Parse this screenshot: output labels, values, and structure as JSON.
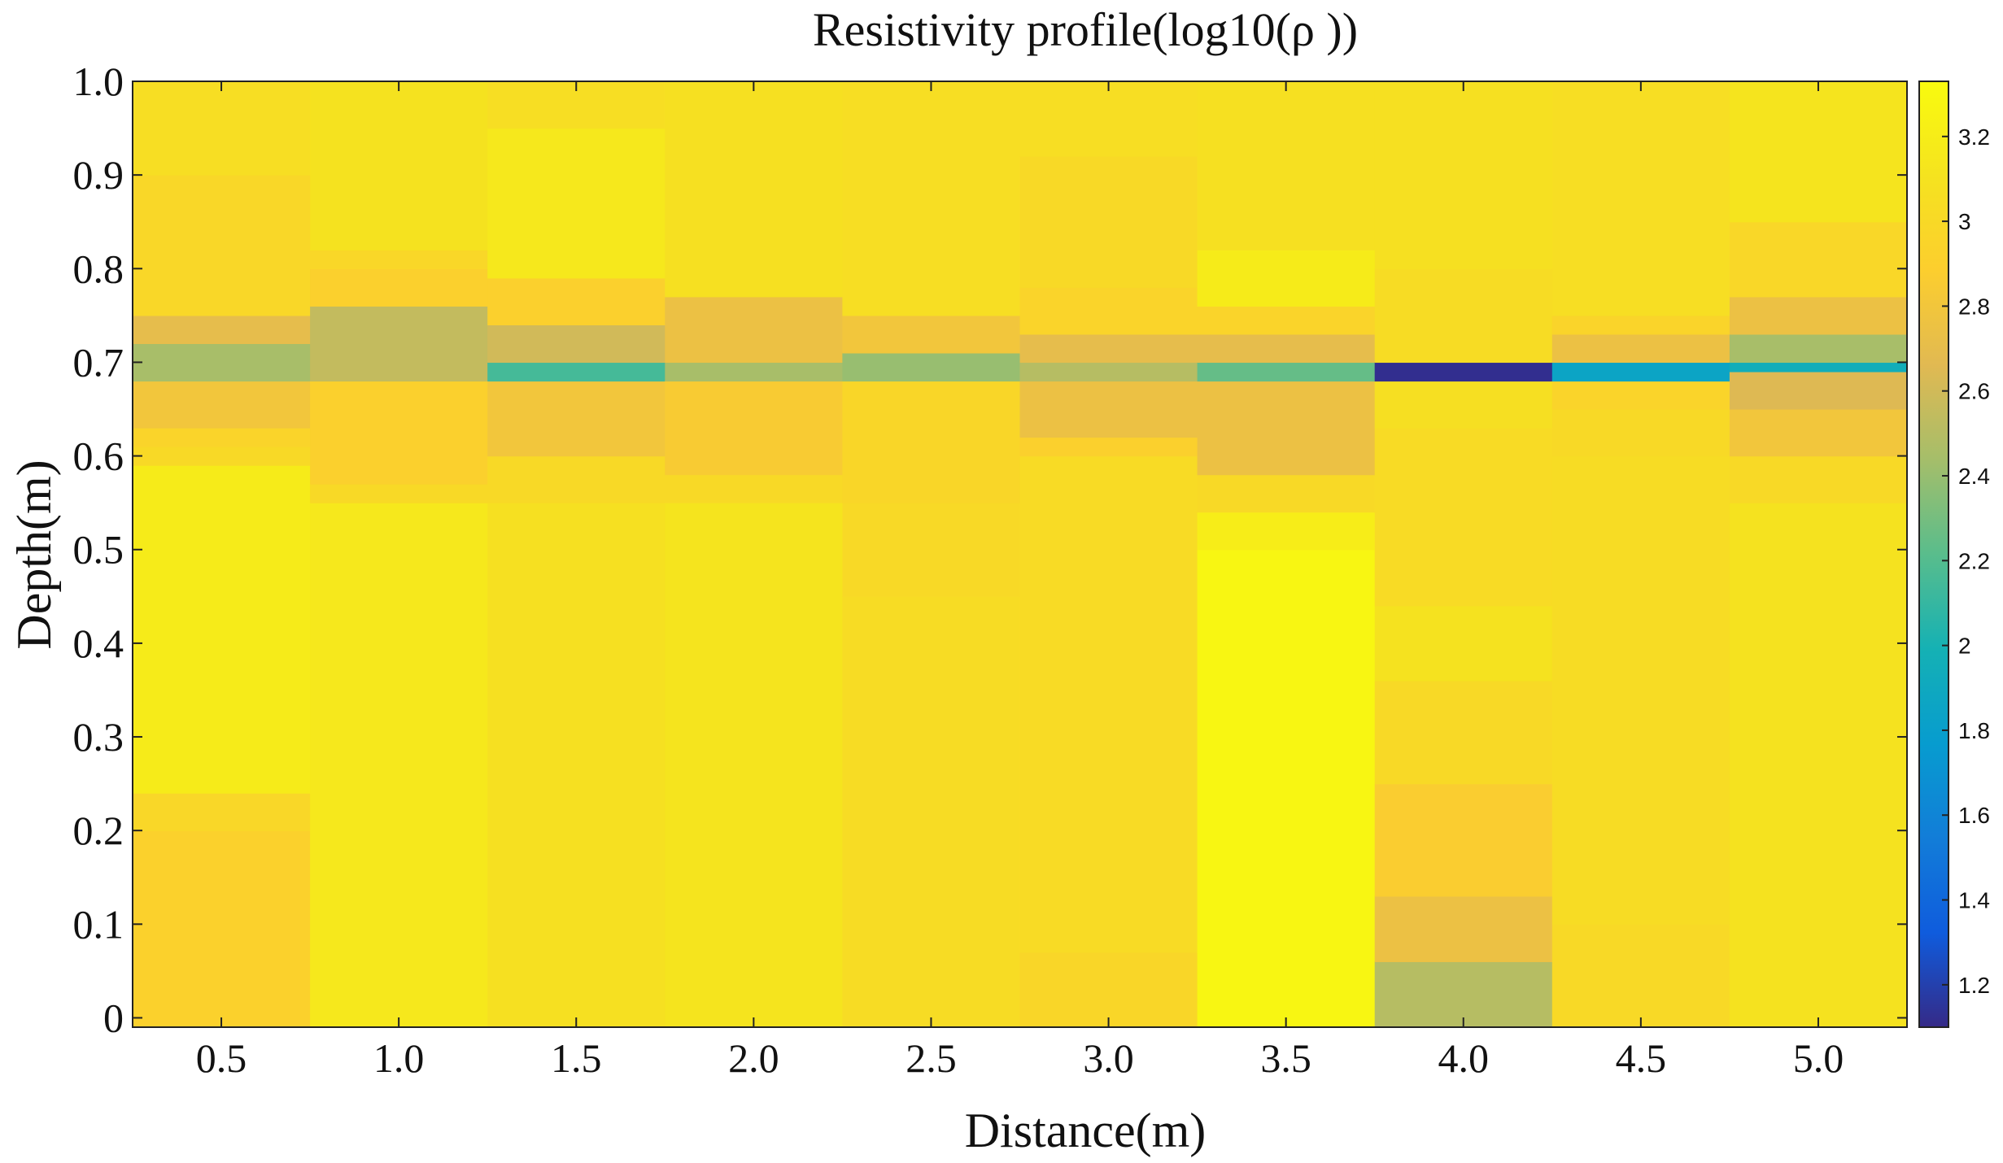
{
  "chart_data": {
    "type": "heatmap",
    "title": "Resistivity profile(log10(ρ ))",
    "xlabel": "Distance(m)",
    "ylabel": "Depth(m)",
    "x_ticks": [
      "0.5",
      "1.0",
      "1.5",
      "2.0",
      "2.5",
      "3.0",
      "3.5",
      "4.0",
      "4.5",
      "5.0"
    ],
    "y_ticks": [
      "0",
      "0.1",
      "0.2",
      "0.3",
      "0.4",
      "0.5",
      "0.6",
      "0.7",
      "0.8",
      "0.9",
      "1.0"
    ],
    "x_centers": [
      0.5,
      1.0,
      1.5,
      2.0,
      2.5,
      3.0,
      3.5,
      4.0,
      4.5,
      5.0
    ],
    "xlim": [
      0.25,
      5.25
    ],
    "ylim": [
      -0.01,
      1.0
    ],
    "colorbar": {
      "min": 1.1,
      "max": 3.33,
      "ticks": [
        "1.2",
        "1.4",
        "1.6",
        "1.8",
        "2",
        "2.2",
        "2.4",
        "2.6",
        "2.8",
        "3",
        "3.2"
      ],
      "colormap": "parula"
    },
    "columns": [
      {
        "x": 0.5,
        "layers": [
          [
            -0.01,
            0.2,
            2.92
          ],
          [
            0.2,
            0.24,
            2.98
          ],
          [
            0.24,
            0.59,
            3.18
          ],
          [
            0.59,
            0.61,
            3.0
          ],
          [
            0.61,
            0.63,
            2.95
          ],
          [
            0.63,
            0.68,
            2.8
          ],
          [
            0.68,
            0.72,
            2.45
          ],
          [
            0.72,
            0.75,
            2.7
          ],
          [
            0.75,
            0.9,
            2.98
          ],
          [
            0.9,
            1.0,
            3.05
          ]
        ]
      },
      {
        "x": 1.0,
        "layers": [
          [
            -0.01,
            0.55,
            3.15
          ],
          [
            0.55,
            0.57,
            3.0
          ],
          [
            0.57,
            0.68,
            2.9
          ],
          [
            0.68,
            0.76,
            2.55
          ],
          [
            0.76,
            0.8,
            2.9
          ],
          [
            0.8,
            0.82,
            2.98
          ],
          [
            0.82,
            1.0,
            3.1
          ]
        ]
      },
      {
        "x": 1.5,
        "layers": [
          [
            -0.01,
            0.55,
            3.08
          ],
          [
            0.55,
            0.6,
            3.0
          ],
          [
            0.6,
            0.68,
            2.8
          ],
          [
            0.68,
            0.7,
            2.15
          ],
          [
            0.7,
            0.74,
            2.6
          ],
          [
            0.74,
            0.79,
            2.9
          ],
          [
            0.79,
            0.95,
            3.15
          ],
          [
            0.95,
            1.0,
            3.05
          ]
        ]
      },
      {
        "x": 2.0,
        "layers": [
          [
            -0.01,
            0.55,
            3.12
          ],
          [
            0.55,
            0.58,
            3.0
          ],
          [
            0.58,
            0.68,
            2.85
          ],
          [
            0.68,
            0.7,
            2.45
          ],
          [
            0.7,
            0.77,
            2.75
          ],
          [
            0.77,
            1.0,
            3.08
          ]
        ]
      },
      {
        "x": 2.5,
        "layers": [
          [
            -0.01,
            0.45,
            3.03
          ],
          [
            0.45,
            0.55,
            3.0
          ],
          [
            0.55,
            0.68,
            2.97
          ],
          [
            0.68,
            0.71,
            2.4
          ],
          [
            0.71,
            0.75,
            2.8
          ],
          [
            0.75,
            1.0,
            3.05
          ]
        ]
      },
      {
        "x": 3.0,
        "layers": [
          [
            -0.01,
            0.07,
            2.97
          ],
          [
            0.07,
            0.6,
            3.02
          ],
          [
            0.6,
            0.62,
            2.9
          ],
          [
            0.62,
            0.68,
            2.75
          ],
          [
            0.68,
            0.7,
            2.5
          ],
          [
            0.7,
            0.73,
            2.7
          ],
          [
            0.73,
            0.78,
            2.95
          ],
          [
            0.78,
            0.92,
            3.0
          ],
          [
            0.92,
            1.0,
            3.05
          ]
        ]
      },
      {
        "x": 3.5,
        "layers": [
          [
            -0.01,
            0.5,
            3.28
          ],
          [
            0.5,
            0.54,
            3.2
          ],
          [
            0.54,
            0.58,
            3.0
          ],
          [
            0.58,
            0.68,
            2.75
          ],
          [
            0.68,
            0.7,
            2.25
          ],
          [
            0.7,
            0.73,
            2.7
          ],
          [
            0.73,
            0.76,
            2.95
          ],
          [
            0.76,
            0.82,
            3.18
          ],
          [
            0.82,
            1.0,
            3.08
          ]
        ]
      },
      {
        "x": 4.0,
        "layers": [
          [
            -0.01,
            0.06,
            2.5
          ],
          [
            0.06,
            0.13,
            2.75
          ],
          [
            0.13,
            0.25,
            2.87
          ],
          [
            0.25,
            0.36,
            3.0
          ],
          [
            0.36,
            0.44,
            3.1
          ],
          [
            0.44,
            0.63,
            3.02
          ],
          [
            0.63,
            0.68,
            3.06
          ],
          [
            0.68,
            0.7,
            1.12
          ],
          [
            0.7,
            0.8,
            3.03
          ],
          [
            0.8,
            1.0,
            3.08
          ]
        ]
      },
      {
        "x": 4.5,
        "layers": [
          [
            -0.01,
            0.1,
            3.0
          ],
          [
            0.1,
            0.6,
            3.03
          ],
          [
            0.6,
            0.65,
            3.0
          ],
          [
            0.65,
            0.68,
            2.95
          ],
          [
            0.68,
            0.7,
            1.85
          ],
          [
            0.7,
            0.73,
            2.75
          ],
          [
            0.73,
            0.75,
            2.95
          ],
          [
            0.75,
            1.0,
            3.05
          ]
        ]
      },
      {
        "x": 5.0,
        "layers": [
          [
            -0.01,
            0.55,
            3.1
          ],
          [
            0.55,
            0.6,
            3.0
          ],
          [
            0.6,
            0.65,
            2.8
          ],
          [
            0.65,
            0.69,
            2.65
          ],
          [
            0.69,
            0.7,
            1.95
          ],
          [
            0.7,
            0.73,
            2.45
          ],
          [
            0.73,
            0.77,
            2.75
          ],
          [
            0.77,
            0.85,
            2.98
          ],
          [
            0.85,
            1.0,
            3.12
          ]
        ]
      }
    ]
  }
}
